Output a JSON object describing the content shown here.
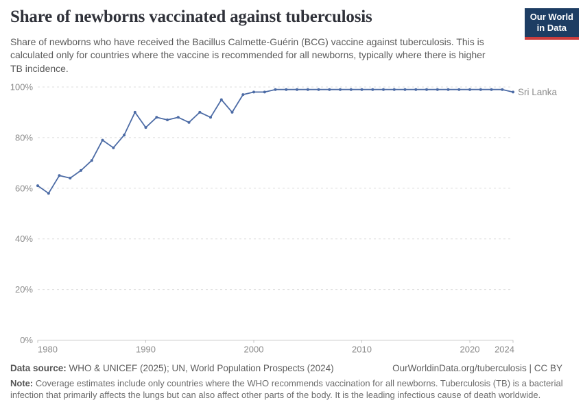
{
  "header": {
    "title": "Share of newborns vaccinated against tuberculosis",
    "subtitle": "Share of newborns who have received the Bacillus Calmette-Guérin (BCG) vaccine against tuberculosis. This is calculated only for countries where the vaccine is recommended for all newborns, typically where there is higher TB incidence.",
    "logo": {
      "line1": "Our World",
      "line2": "in Data"
    }
  },
  "chart_data": {
    "type": "line",
    "title": "Share of newborns vaccinated against tuberculosis",
    "xlabel": "",
    "ylabel": "",
    "xlim": [
      1980,
      2024
    ],
    "ylim": [
      0,
      100
    ],
    "xticks": [
      1980,
      1990,
      2000,
      2010,
      2020,
      2024
    ],
    "yticks": [
      0,
      20,
      40,
      60,
      80,
      100
    ],
    "ytick_labels": [
      "0%",
      "20%",
      "40%",
      "60%",
      "80%",
      "100%"
    ],
    "grid": "horizontal-dashed",
    "legend_position": "end-of-line-label",
    "series": [
      {
        "name": "Sri Lanka",
        "color": "#4c6ba5",
        "x": [
          1980,
          1981,
          1982,
          1983,
          1984,
          1985,
          1986,
          1987,
          1988,
          1989,
          1990,
          1991,
          1992,
          1993,
          1994,
          1995,
          1996,
          1997,
          1998,
          1999,
          2000,
          2001,
          2002,
          2003,
          2004,
          2005,
          2006,
          2007,
          2008,
          2009,
          2010,
          2011,
          2012,
          2013,
          2014,
          2015,
          2016,
          2017,
          2018,
          2019,
          2020,
          2021,
          2022,
          2023,
          2024
        ],
        "values": [
          61,
          58,
          65,
          64,
          67,
          71,
          79,
          76,
          81,
          90,
          84,
          88,
          87,
          88,
          86,
          90,
          88,
          95,
          90,
          97,
          98,
          98,
          99,
          99,
          99,
          99,
          99,
          99,
          99,
          99,
          99,
          99,
          99,
          99,
          99,
          99,
          99,
          99,
          99,
          99,
          99,
          99,
          99,
          99,
          98
        ]
      }
    ]
  },
  "footer": {
    "datasource_label": "Data source:",
    "datasource_text": " WHO & UNICEF (2025); UN, World Population Prospects (2024)",
    "link": "OurWorldinData.org/tuberculosis | CC BY",
    "note_label": "Note:",
    "note_text": " Coverage estimates include only countries where the WHO recommends vaccination for all newborns. Tuberculosis (TB) is a bacterial infection that primarily affects the lungs but can also affect other parts of the body. It is the leading infectious cause of death worldwide."
  },
  "colors": {
    "line": "#4c6ba5",
    "gridline": "#dcdcdc",
    "axis": "#c5c5c5",
    "tick_label": "#8b8b8b",
    "logo_bg": "#1d3d63",
    "logo_stripe": "#cb3d3d",
    "title": "#30323a"
  }
}
